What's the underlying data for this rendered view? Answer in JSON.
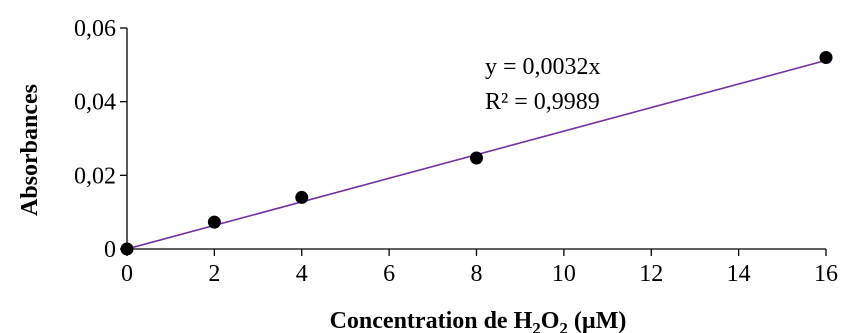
{
  "chart_data": {
    "type": "scatter",
    "x": [
      0,
      2,
      4,
      8,
      16
    ],
    "y": [
      0,
      0.0073,
      0.014,
      0.0247,
      0.052
    ],
    "xlabel": {
      "prefix": "Concentration de H",
      "sub1": "2",
      "mid": "O",
      "sub2": "2",
      "suffix": " (µM)"
    },
    "ylabel": "Absorbances",
    "xlim": [
      0,
      16
    ],
    "ylim": [
      0,
      0.06
    ],
    "xticks": [
      0,
      2,
      4,
      6,
      8,
      10,
      12,
      14,
      16
    ],
    "yticks": [
      0,
      0.02,
      0.04,
      0.06
    ],
    "xtick_labels": [
      "0",
      "2",
      "4",
      "6",
      "8",
      "10",
      "12",
      "14",
      "16"
    ],
    "ytick_labels": [
      "0",
      "0,02",
      "0,04",
      "0,06"
    ],
    "grid": false,
    "trendline": {
      "slope": 0.0032,
      "intercept": 0,
      "equation": "y = 0,0032x",
      "r_squared": "R² = 0,9989"
    },
    "colors": {
      "marker": "#000000",
      "trendline": "#7030a0",
      "axis": "#000000"
    }
  }
}
